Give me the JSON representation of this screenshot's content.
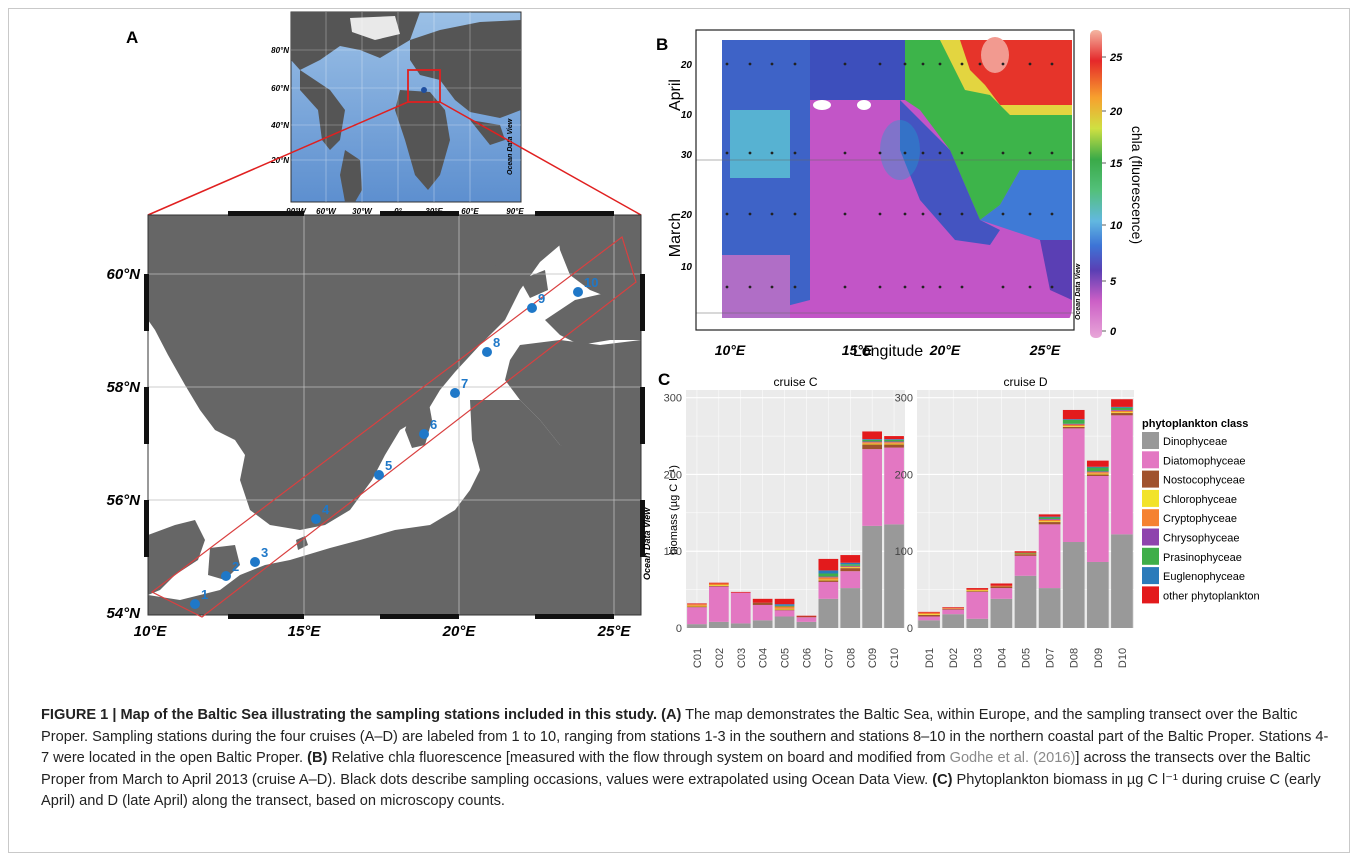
{
  "panel_a": {
    "label": "A",
    "inset": {
      "lat_labels": [
        "80°N",
        "60°N",
        "40°N",
        "20°N"
      ],
      "lon_labels": [
        "90°W",
        "60°W",
        "30°W",
        "0°",
        "30°E",
        "60°E",
        "90°E"
      ],
      "watermark": "Ocean Data View"
    },
    "map": {
      "lat_labels": [
        "60°N",
        "58°N",
        "56°N",
        "54°N"
      ],
      "lon_labels": [
        "10°E",
        "15°E",
        "20°E",
        "25°E"
      ],
      "watermark": "Ocean Data View",
      "stations": [
        "1",
        "2",
        "3",
        "4",
        "5",
        "6",
        "7",
        "8",
        "9",
        "10"
      ],
      "colors": {
        "land": "#666666",
        "sea": "#ffffff",
        "station": "#1f78c8",
        "transect": "#d94040"
      }
    }
  },
  "panel_b": {
    "label": "B",
    "xlabel": "Longitude",
    "x_ticks": [
      "10°E",
      "15°E",
      "20°E",
      "25°E"
    ],
    "month_labels": [
      "April",
      "March"
    ],
    "day_ticks": [
      "20",
      "10",
      "30",
      "20",
      "10"
    ],
    "colorbar_label": "chla (fluorescence)",
    "colorbar_ticks": [
      "25",
      "20",
      "15",
      "10",
      "5",
      "0"
    ],
    "watermark": "Ocean Data View"
  },
  "panel_c": {
    "label": "C",
    "ylabel": "biomass (µg C l⁻¹)",
    "legend_title": "phytoplankton class",
    "classes": [
      "Dinophyceae",
      "Diatomophyceae",
      "Nostocophyceae",
      "Chlorophyceae",
      "Cryptophyceae",
      "Chrysophyceae",
      "Prasinophyceae",
      "Euglenophyceae",
      "other phytoplankton"
    ],
    "class_colors": [
      "#999999",
      "#e377c2",
      "#a0522d",
      "#f2e32a",
      "#f58231",
      "#8e44ad",
      "#3fae49",
      "#2b7bba",
      "#e31a1c"
    ]
  },
  "chart_data": [
    {
      "type": "bar",
      "title": "cruise  C",
      "ylabel": "biomass (µg C l⁻¹)",
      "ylim": [
        0,
        310
      ],
      "yticks": [
        0,
        100,
        200,
        300
      ],
      "categories": [
        "C01",
        "C02",
        "C03",
        "C04",
        "C05",
        "C06",
        "C07",
        "C08",
        "C09",
        "C10"
      ],
      "series": [
        {
          "name": "Dinophyceae",
          "values": [
            5,
            8,
            6,
            10,
            15,
            8,
            38,
            52,
            133,
            135
          ]
        },
        {
          "name": "Diatomophyceae",
          "values": [
            22,
            46,
            40,
            20,
            8,
            6,
            22,
            22,
            100,
            100
          ]
        },
        {
          "name": "Nostocophyceae",
          "values": [
            1,
            1,
            0,
            3,
            1,
            1,
            2,
            4,
            6,
            4
          ]
        },
        {
          "name": "Chlorophyceae",
          "values": [
            1,
            1,
            0,
            0,
            1,
            0,
            1,
            1,
            1,
            1
          ]
        },
        {
          "name": "Cryptophyceae",
          "values": [
            2,
            2,
            0,
            0,
            3,
            0,
            3,
            1,
            2,
            2
          ]
        },
        {
          "name": "Chrysophyceae",
          "values": [
            0,
            0,
            0,
            0,
            0,
            0,
            1,
            1,
            1,
            1
          ]
        },
        {
          "name": "Prasinophyceae",
          "values": [
            0,
            0,
            0,
            0,
            1,
            0,
            4,
            2,
            2,
            2
          ]
        },
        {
          "name": "Euglenophyceae",
          "values": [
            0,
            0,
            0,
            0,
            2,
            0,
            4,
            2,
            1,
            1
          ]
        },
        {
          "name": "other phytoplankton",
          "values": [
            1,
            1,
            1,
            5,
            7,
            1,
            15,
            10,
            10,
            4
          ]
        }
      ]
    },
    {
      "type": "bar",
      "title": "cruise D",
      "ylim": [
        0,
        310
      ],
      "yticks": [
        0,
        100,
        200,
        300
      ],
      "categories": [
        "D01",
        "D02",
        "D03",
        "D04",
        "D05",
        "D07",
        "D08",
        "D09",
        "D10"
      ],
      "series": [
        {
          "name": "Dinophyceae",
          "values": [
            10,
            18,
            12,
            38,
            68,
            52,
            112,
            86,
            122
          ]
        },
        {
          "name": "Diatomophyceae",
          "values": [
            5,
            6,
            35,
            14,
            26,
            83,
            148,
            112,
            155
          ]
        },
        {
          "name": "Nostocophyceae",
          "values": [
            2,
            1,
            1,
            2,
            2,
            3,
            2,
            2,
            3
          ]
        },
        {
          "name": "Chlorophyceae",
          "values": [
            1,
            0,
            1,
            0,
            0,
            1,
            1,
            1,
            1
          ]
        },
        {
          "name": "Cryptophyceae",
          "values": [
            2,
            1,
            1,
            1,
            1,
            2,
            2,
            2,
            2
          ]
        },
        {
          "name": "Chrysophyceae",
          "values": [
            0,
            0,
            0,
            0,
            0,
            1,
            1,
            1,
            1
          ]
        },
        {
          "name": "Prasinophyceae",
          "values": [
            0,
            0,
            0,
            0,
            1,
            2,
            5,
            5,
            3
          ]
        },
        {
          "name": "Euglenophyceae",
          "values": [
            0,
            0,
            0,
            0,
            0,
            1,
            1,
            1,
            1
          ]
        },
        {
          "name": "other phytoplankton",
          "values": [
            1,
            1,
            2,
            3,
            2,
            3,
            12,
            8,
            10
          ]
        }
      ]
    }
  ],
  "caption": {
    "title": "FIGURE 1 | Map of the Baltic Sea illustrating the sampling stations included in this study.",
    "a_label": "(A)",
    "a_text": "The map demonstrates the Baltic Sea, within Europe, and the sampling transect over the Baltic Proper. Sampling stations during the four cruises (A–D) are labeled from 1 to 10, ranging from stations 1-3 in the southern and stations 8–10 in the northern coastal part of the Baltic Proper. Stations 4-7 were located in the open Baltic Proper.",
    "b_label": "(B)",
    "b_text_1": "Relative chl",
    "b_italic": "a",
    "b_text_2": "fluorescence [measured with the flow through system on board and modified from",
    "b_ref": "Godhe et al. (2016)",
    "b_text_3": "] across the transects over the Baltic Proper from March to April 2013 (cruise A–D). Black dots describe sampling occasions, values were extrapolated using Ocean Data View.",
    "c_label": "(C)",
    "c_text": "Phytoplankton biomass in µg C l⁻¹ during cruise C (early April) and D (late April) along the transect, based on microscopy counts."
  }
}
